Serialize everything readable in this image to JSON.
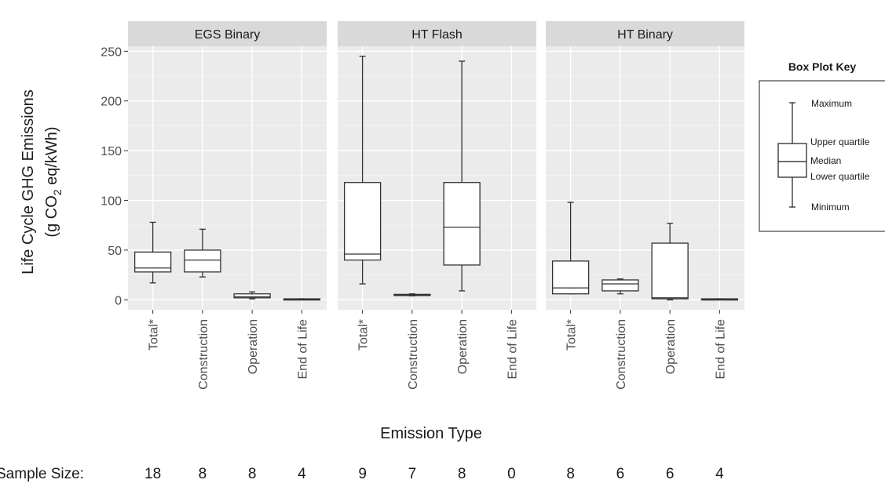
{
  "chart_data": {
    "type": "box",
    "ylabel_line1": "Life Cycle GHG Emissions",
    "ylabel_line2_pre": "(g CO",
    "ylabel_line2_sub": "2",
    "ylabel_line2_post": " eq/kWh)",
    "xlabel": "Emission Type",
    "ylim": [
      -10,
      255
    ],
    "yticks": [
      0,
      50,
      100,
      150,
      200,
      250
    ],
    "categories": [
      "Total*",
      "Construction",
      "Operation",
      "End of Life"
    ],
    "panels": [
      {
        "name": "EGS Binary",
        "boxes": [
          {
            "min": 17,
            "q1": 28,
            "median": 32,
            "q3": 48,
            "max": 78
          },
          {
            "min": 23,
            "q1": 28,
            "median": 40,
            "q3": 50,
            "max": 71
          },
          {
            "min": 1,
            "q1": 2,
            "median": 3,
            "q3": 6,
            "max": 8
          },
          {
            "min": 0,
            "q1": 0,
            "median": 0.5,
            "q3": 1,
            "max": 1
          }
        ],
        "sample_sizes": [
          "18",
          "8",
          "8",
          "4"
        ]
      },
      {
        "name": "HT Flash",
        "boxes": [
          {
            "min": 16,
            "q1": 40,
            "median": 46,
            "q3": 118,
            "max": 245
          },
          {
            "min": 4,
            "q1": 4.5,
            "median": 5,
            "q3": 5.5,
            "max": 6
          },
          {
            "min": 9,
            "q1": 35,
            "median": 73,
            "q3": 118,
            "max": 240
          },
          null
        ],
        "sample_sizes": [
          "9",
          "7",
          "8",
          "0"
        ]
      },
      {
        "name": "HT Binary",
        "boxes": [
          {
            "min": 6,
            "q1": 6,
            "median": 12,
            "q3": 39,
            "max": 98
          },
          {
            "min": 6,
            "q1": 9,
            "median": 16,
            "q3": 20,
            "max": 21
          },
          {
            "min": 0,
            "q1": 1,
            "median": 2,
            "q3": 57,
            "max": 77
          },
          {
            "min": 0,
            "q1": 0,
            "median": 0.5,
            "q3": 1,
            "max": 1
          }
        ],
        "sample_sizes": [
          "8",
          "6",
          "6",
          "4"
        ]
      }
    ],
    "sample_size_label": "Sample Size:",
    "grid": true
  },
  "key": {
    "title": "Box Plot Key",
    "maximum": "Maximum",
    "upper_quartile": "Upper quartile",
    "median": "Median",
    "lower_quartile": "Lower quartile",
    "minimum": "Minimum"
  }
}
